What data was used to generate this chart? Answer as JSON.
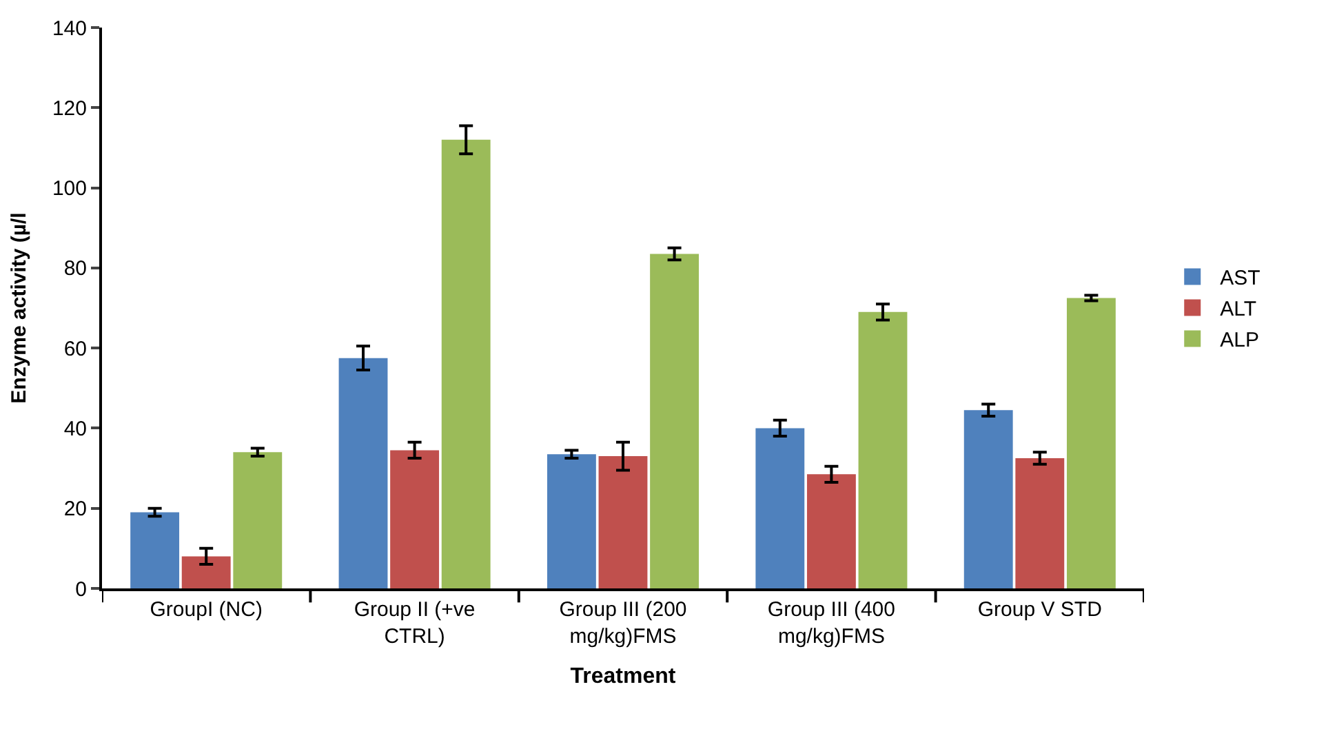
{
  "chart_data": {
    "type": "bar",
    "xlabel": "Treatment",
    "ylabel": "Enzyme activity (µ/l",
    "categories": [
      "GroupI (NC)",
      "Group II (+ve CTRL)",
      "Group III (200 mg/kg)FMS",
      "Group III (400 mg/kg)FMS",
      "Group V STD"
    ],
    "series": [
      {
        "name": "AST",
        "color": "#4f81bd",
        "values": [
          19,
          57.5,
          33.5,
          40,
          44.5
        ],
        "errors": [
          1,
          3,
          1,
          2,
          1.5
        ]
      },
      {
        "name": "ALT",
        "color": "#c0504d",
        "values": [
          8,
          34.5,
          33,
          28.5,
          32.5
        ],
        "errors": [
          2,
          2,
          3.5,
          2,
          1.5
        ]
      },
      {
        "name": "ALP",
        "color": "#9bbb59",
        "values": [
          34,
          112,
          83.5,
          69,
          72.5
        ],
        "errors": [
          1,
          3.5,
          1.5,
          2,
          0.7
        ]
      }
    ],
    "ylim": [
      0,
      140
    ],
    "yticks": [
      0,
      20,
      40,
      60,
      80,
      100,
      120,
      140
    ],
    "legend": "right",
    "grid": false
  }
}
